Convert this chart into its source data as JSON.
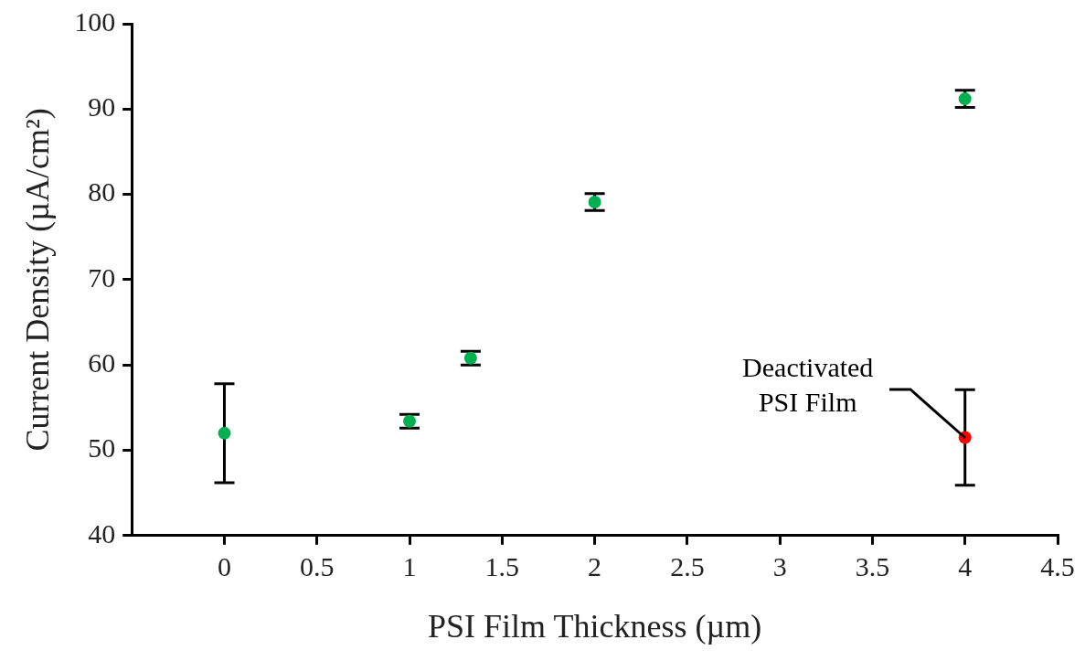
{
  "chart_data": {
    "type": "scatter",
    "xlabel": "PSI Film Thickness (µm)",
    "ylabel": "Current Density (µA/cm²)",
    "series": [
      {
        "color": "#00b050",
        "x": [
          0,
          1,
          1.33,
          2,
          4
        ],
        "values": [
          52,
          53.4,
          60.8,
          79.1,
          91.2
        ],
        "errors": [
          5.8,
          0.8,
          0.8,
          1,
          1
        ]
      },
      {
        "color": "#ff0000",
        "x": [
          4
        ],
        "values": [
          51.5
        ],
        "errors": [
          5.6
        ]
      }
    ],
    "xlim": [
      -0.5,
      4.5
    ],
    "xticks": [
      0,
      0.5,
      1,
      1.5,
      2,
      2.5,
      3,
      3.5,
      4,
      4.5
    ],
    "ylim": [
      40,
      100
    ],
    "yticks": [
      40,
      50,
      60,
      70,
      80,
      90,
      100
    ],
    "grid": false,
    "legend": false,
    "marker": "circle",
    "annotations": [
      {
        "text": "Deactivated\nPSI Film",
        "x": 4,
        "y": 51.5
      }
    ]
  }
}
